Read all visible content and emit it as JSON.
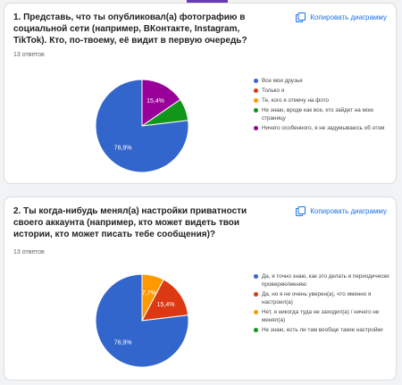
{
  "colors": {
    "blue": "#3366cc",
    "red": "#dc3912",
    "orange": "#ff9900",
    "green": "#109618",
    "purple": "#990099",
    "link": "#1a73e8"
  },
  "copy_label": "Копировать диаграмму",
  "copy_icon": "copy-chart-icon",
  "questions": [
    {
      "title": "1. Представь, что ты опубликовал(а) фотографию в социальной сети (например, ВКонтакте, Instagram, TikTok). Кто, по-твоему, её видит в первую очередь?",
      "count": "13 ответов",
      "legend": [
        "Все мои друзья",
        "Только я",
        "Те, кого я отмечу на фото",
        "Не знаю, вроде как все, кто зайдет на мою страницу",
        "Ничего особенного, я не задумываюсь об этом"
      ]
    },
    {
      "title": "2. Ты когда-нибудь менял(а) настройки приватности своего аккаунта (например, кто может видеть твои истории, кто может писать тебе сообщения)?",
      "count": "13 ответов",
      "legend": [
        "Да, я точно знаю, как это делать и периодически проверяю/меняю",
        "Да, но я не очень уверен(а), что именно я настроил(а)",
        "Нет, я никогда туда не заходил(а) / ничего не менял(а)",
        "Не знаю, есть ли там вообще такие настройки"
      ]
    }
  ],
  "chart_data": [
    {
      "type": "pie",
      "categories": [
        "Все мои друзья",
        "Только я",
        "Те, кого я отмечу на фото",
        "Не знаю, вроде как все, кто зайдет на мою страницу",
        "Ничего особенного, я не задумываюсь об этом"
      ],
      "values": [
        76.9,
        0,
        0,
        7.7,
        15.4
      ],
      "data_labels": [
        "76,9%",
        "",
        "",
        "",
        "15,4%"
      ],
      "colors": [
        "#3366cc",
        "#dc3912",
        "#ff9900",
        "#109618",
        "#990099"
      ],
      "legend_position": "right"
    },
    {
      "type": "pie",
      "categories": [
        "Да, я точно знаю, как это делать и периодически проверяю/меняю",
        "Да, но я не очень уверен(а), что именно я настроил(а)",
        "Нет, я никогда туда не заходил(а) / ничего не менял(а)",
        "Не знаю, есть ли там вообще такие настройки"
      ],
      "values": [
        76.9,
        15.4,
        7.7,
        0
      ],
      "data_labels": [
        "76,9%",
        "15,4%",
        "7,7%",
        ""
      ],
      "colors": [
        "#3366cc",
        "#dc3912",
        "#ff9900",
        "#109618"
      ],
      "legend_position": "right"
    }
  ]
}
